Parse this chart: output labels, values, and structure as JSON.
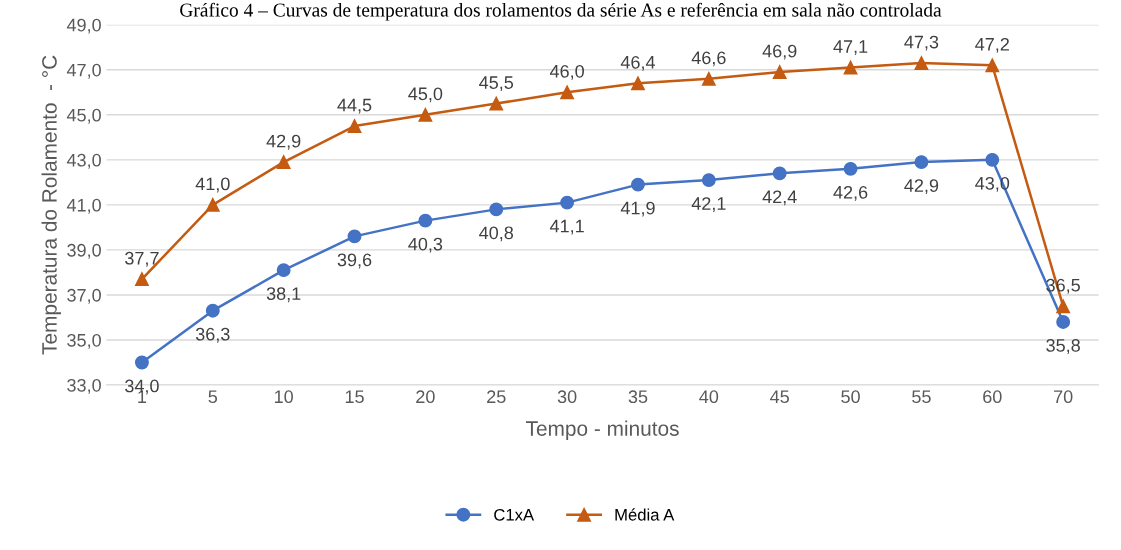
{
  "chart_data": {
    "type": "line",
    "title": "Gráfico 4 – Curvas de temperatura dos rolamentos da série As e referência em sala não controlada",
    "xlabel": "Tempo - minutos",
    "ylabel": "Temperatura do Rolamento  - °C",
    "categories": [
      "1",
      "5",
      "10",
      "15",
      "20",
      "25",
      "30",
      "35",
      "40",
      "45",
      "50",
      "55",
      "60",
      "70"
    ],
    "series": [
      {
        "name": "C1xA",
        "color": "#4472c4",
        "marker": "circle",
        "values": [
          34.0,
          36.3,
          38.1,
          39.6,
          40.3,
          40.8,
          41.1,
          41.9,
          42.1,
          42.4,
          42.6,
          42.9,
          43.0,
          35.8
        ],
        "value_labels": [
          "34,0",
          "36,3",
          "38,1",
          "39,6",
          "40,3",
          "40,8",
          "41,1",
          "41,9",
          "42,1",
          "42,4",
          "42,6",
          "42,9",
          "43,0",
          "35,8"
        ]
      },
      {
        "name": "Média A",
        "color": "#c55a11",
        "marker": "triangle",
        "values": [
          37.7,
          41.0,
          42.9,
          44.5,
          45.0,
          45.5,
          46.0,
          46.4,
          46.6,
          46.9,
          47.1,
          47.3,
          47.2,
          36.5
        ],
        "value_labels": [
          "37,7",
          "41,0",
          "42,9",
          "44,5",
          "45,0",
          "45,5",
          "46,0",
          "46,4",
          "46,6",
          "46,9",
          "47,1",
          "47,3",
          "47,2",
          "36,5"
        ]
      }
    ],
    "ylim": [
      33,
      49
    ],
    "yticks": [
      {
        "value": 33,
        "label": "33,0"
      },
      {
        "value": 35,
        "label": "35,0"
      },
      {
        "value": 37,
        "label": "37,0"
      },
      {
        "value": 39,
        "label": "39,0"
      },
      {
        "value": 41,
        "label": "41,0"
      },
      {
        "value": 43,
        "label": "43,0"
      },
      {
        "value": 45,
        "label": "45,0"
      },
      {
        "value": 47,
        "label": "47,0"
      },
      {
        "value": 49,
        "label": "49,0"
      }
    ],
    "grid": "y",
    "legend": "bottom",
    "line_style": "solid"
  }
}
